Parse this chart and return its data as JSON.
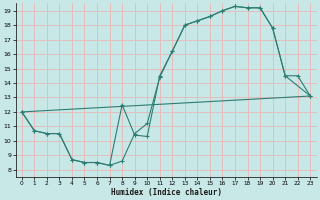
{
  "xlabel": "Humidex (Indice chaleur)",
  "bg_color": "#c8e8e8",
  "grid_color": "#e8b8b8",
  "line_color": "#2d7d72",
  "xlim": [
    -0.5,
    23.5
  ],
  "ylim": [
    7.5,
    19.5
  ],
  "xticks": [
    0,
    1,
    2,
    3,
    4,
    5,
    6,
    7,
    8,
    9,
    10,
    11,
    12,
    13,
    14,
    15,
    16,
    17,
    18,
    19,
    20,
    21,
    22,
    23
  ],
  "yticks": [
    8,
    9,
    10,
    11,
    12,
    13,
    14,
    15,
    16,
    17,
    18,
    19
  ],
  "line1_x": [
    0,
    1,
    2,
    3,
    4,
    5,
    6,
    7,
    8,
    9,
    10,
    11,
    12,
    13,
    14,
    15,
    16,
    17,
    18,
    19,
    20,
    21,
    23
  ],
  "line1_y": [
    12.0,
    10.7,
    10.5,
    10.5,
    8.7,
    8.5,
    8.5,
    8.3,
    8.6,
    10.5,
    11.2,
    14.4,
    16.2,
    18.0,
    18.3,
    18.6,
    19.0,
    19.3,
    19.2,
    19.2,
    17.8,
    14.5,
    13.1
  ],
  "line2_x": [
    0,
    1,
    2,
    3,
    4,
    5,
    6,
    7,
    8,
    9,
    10,
    11,
    12,
    13,
    14,
    15,
    16,
    17,
    18,
    19,
    20,
    21,
    22,
    23
  ],
  "line2_y": [
    12.0,
    10.7,
    10.5,
    10.5,
    8.7,
    8.5,
    8.5,
    8.3,
    12.5,
    10.4,
    10.3,
    14.5,
    16.2,
    18.0,
    18.3,
    18.6,
    19.0,
    19.3,
    19.2,
    19.2,
    17.8,
    14.5,
    14.5,
    13.1
  ],
  "line3_x": [
    0,
    23
  ],
  "line3_y": [
    12.0,
    13.1
  ]
}
